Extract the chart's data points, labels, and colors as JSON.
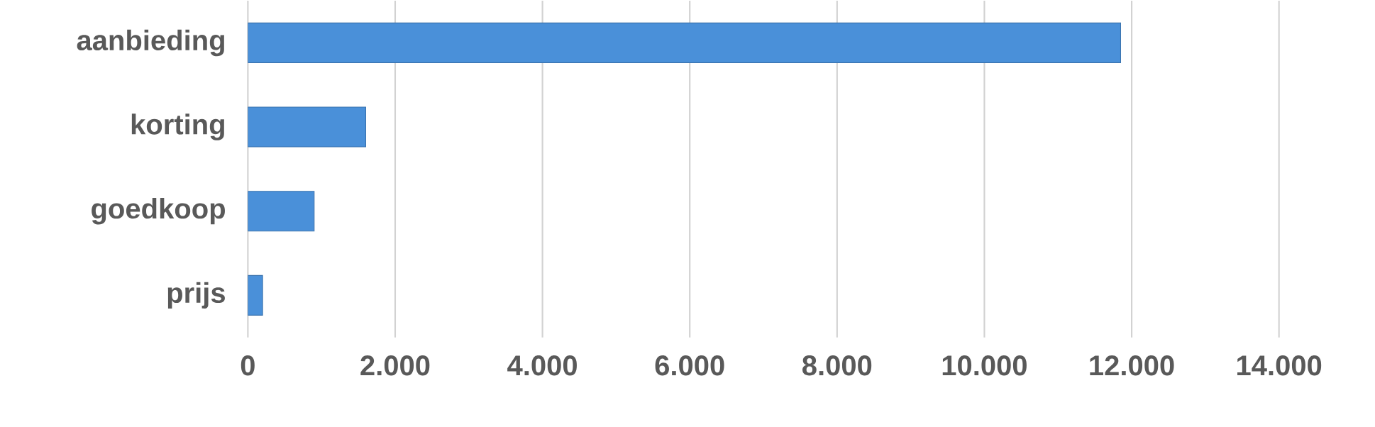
{
  "chart_data": {
    "type": "bar",
    "orientation": "horizontal",
    "categories": [
      "aanbieding",
      "korting",
      "goedkoop",
      "prijs"
    ],
    "values": [
      11850,
      1600,
      900,
      200
    ],
    "color": "#4a90d9",
    "xlim": [
      0,
      14000
    ],
    "xticks": [
      0,
      {
        "value": 2000,
        "label": "2.000"
      },
      {
        "value": 4000,
        "label": "4.000"
      },
      {
        "value": 6000,
        "label": "6.000"
      },
      {
        "value": 8000,
        "label": "8.000"
      },
      {
        "value": 10000,
        "label": "10.000"
      },
      {
        "value": 12000,
        "label": "12.000"
      },
      {
        "value": 14000,
        "label": "14.000"
      }
    ],
    "grid": "x"
  }
}
